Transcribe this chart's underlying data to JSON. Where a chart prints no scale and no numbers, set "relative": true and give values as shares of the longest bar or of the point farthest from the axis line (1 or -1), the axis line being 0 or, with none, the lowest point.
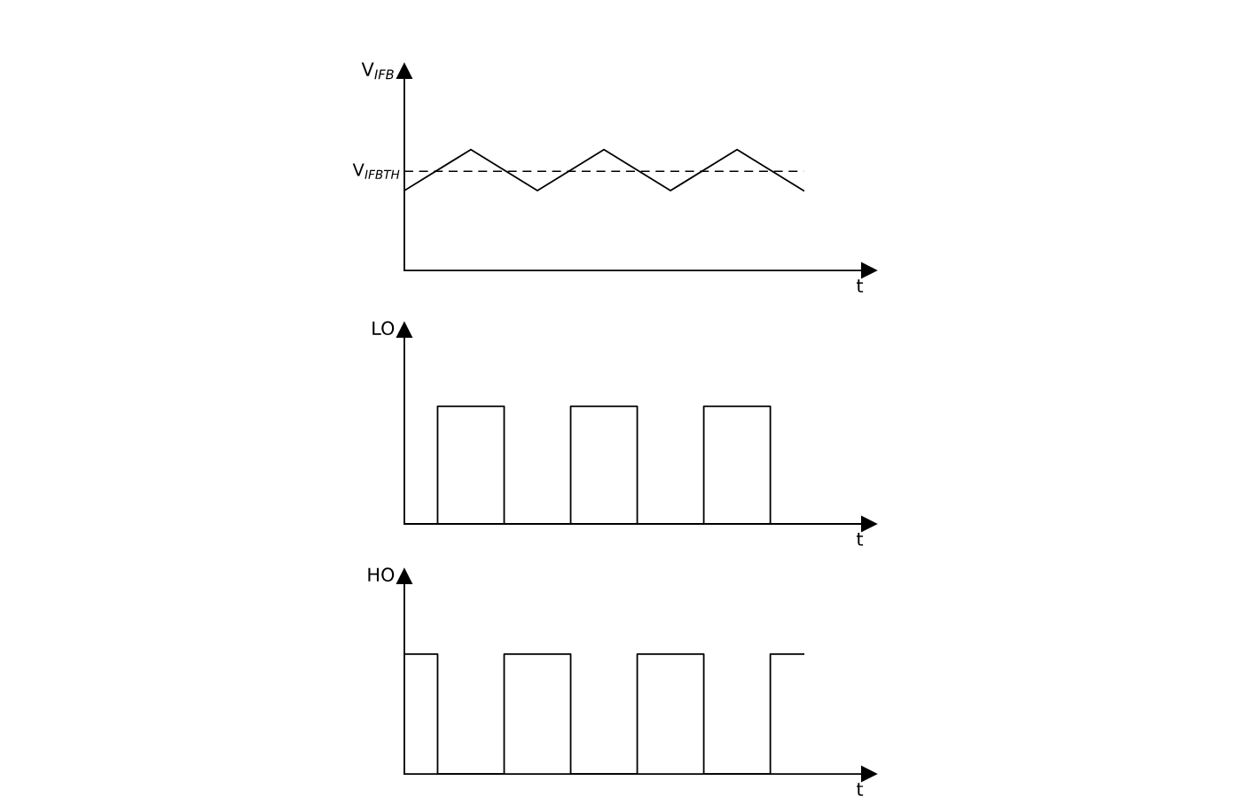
{
  "chart_data": [
    {
      "type": "line",
      "relative": true,
      "ylabel": "V$_{IFB}$",
      "xlabel": "t",
      "categories": [
        null,
        null,
        null,
        null,
        null,
        null,
        null
      ],
      "series": [
        {
          "color": "#000000",
          "values": [
            0.66,
            1,
            0.66,
            1,
            0.66,
            1,
            0.66
          ]
        }
      ],
      "ref_lines": [
        {
          "axis": "y",
          "value": 0.82,
          "label": "V$_{IFBTH}$",
          "color": "#000000",
          "line_style": "dashed"
        }
      ]
    },
    {
      "type": "step",
      "relative": true,
      "ylabel": "LO",
      "xlabel": "t",
      "categories": [
        null,
        null,
        null,
        null,
        null,
        null,
        null,
        null,
        null,
        null,
        null,
        null,
        null
      ],
      "series": [
        {
          "color": "#000000",
          "values": [
            0,
            1,
            1,
            0,
            0,
            1,
            1,
            0,
            0,
            1,
            1,
            0,
            0
          ]
        }
      ]
    },
    {
      "type": "step",
      "relative": true,
      "ylabel": "HO",
      "xlabel": "t",
      "categories": [
        null,
        null,
        null,
        null,
        null,
        null,
        null,
        null,
        null,
        null,
        null,
        null,
        null
      ],
      "series": [
        {
          "color": "#000000",
          "values": [
            1,
            0,
            0,
            1,
            1,
            0,
            0,
            1,
            1,
            0,
            0,
            1,
            1
          ]
        }
      ]
    }
  ]
}
